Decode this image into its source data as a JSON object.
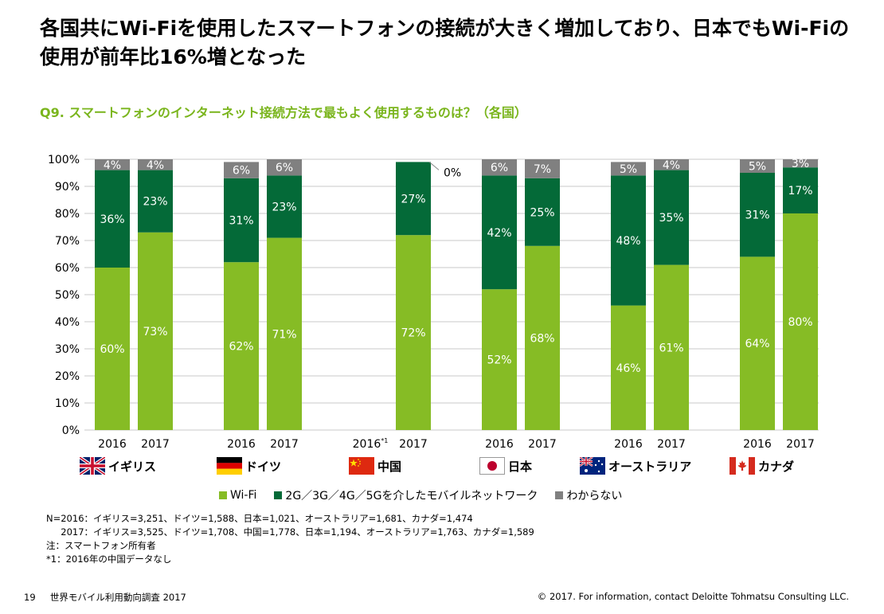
{
  "title": "各国共にWi-Fiを使用したスマートフォンの接続が大きく増加しており、日本でもWi-Fiの使用が前年比16%増となった",
  "subtitle": "Q9. スマートフォンのインターネット接続方法で最もよく使用するものは？（各国）",
  "colors": {
    "wifi": "#86bc25",
    "mobile": "#046a38",
    "unknown": "#808080",
    "accent": "#7ab51d"
  },
  "chart_data": {
    "type": "bar",
    "stacked": true,
    "ylim": [
      0,
      100
    ],
    "yticks": [
      "0%",
      "10%",
      "20%",
      "30%",
      "40%",
      "50%",
      "60%",
      "70%",
      "80%",
      "90%",
      "100%"
    ],
    "grid": true,
    "legend_position": "bottom",
    "groups": [
      {
        "country": "イギリス",
        "bars": [
          {
            "year": "2016",
            "wifi": 60,
            "mobile": 36,
            "unknown": 4
          },
          {
            "year": "2017",
            "wifi": 73,
            "mobile": 23,
            "unknown": 4
          }
        ]
      },
      {
        "country": "ドイツ",
        "bars": [
          {
            "year": "2016",
            "wifi": 62,
            "mobile": 31,
            "unknown": 6
          },
          {
            "year": "2017",
            "wifi": 71,
            "mobile": 23,
            "unknown": 6
          }
        ]
      },
      {
        "country": "中国",
        "bars": [
          {
            "year": "2016*1",
            "wifi": null,
            "mobile": null,
            "unknown": null
          },
          {
            "year": "2017",
            "wifi": 72,
            "mobile": 27,
            "unknown": 0
          }
        ]
      },
      {
        "country": "日本",
        "bars": [
          {
            "year": "2016",
            "wifi": 52,
            "mobile": 42,
            "unknown": 6
          },
          {
            "year": "2017",
            "wifi": 68,
            "mobile": 25,
            "unknown": 7
          }
        ]
      },
      {
        "country": "オーストラリア",
        "bars": [
          {
            "year": "2016",
            "wifi": 46,
            "mobile": 48,
            "unknown": 5
          },
          {
            "year": "2017",
            "wifi": 61,
            "mobile": 35,
            "unknown": 4
          }
        ]
      },
      {
        "country": "カナダ",
        "bars": [
          {
            "year": "2016",
            "wifi": 64,
            "mobile": 31,
            "unknown": 5
          },
          {
            "year": "2017",
            "wifi": 80,
            "mobile": 17,
            "unknown": 3
          }
        ]
      }
    ],
    "series": [
      {
        "key": "wifi",
        "name": "Wi-Fi"
      },
      {
        "key": "mobile",
        "name": "2G／3G／4G／5Gを介したモバイルネットワーク"
      },
      {
        "key": "unknown",
        "name": "わからない"
      }
    ]
  },
  "flags": [
    "uk-flag-icon",
    "germany-flag-icon",
    "china-flag-icon",
    "japan-flag-icon",
    "australia-flag-icon",
    "canada-flag-icon"
  ],
  "notes": [
    "N=2016：イギリス=3,251、ドイツ=1,588、日本=1,021、オーストラリア=1,681、カナダ=1,474",
    "     2017：イギリス=3,525、ドイツ=1,708、中国=1,778、日本=1,194、オーストラリア=1,763、カナダ=1,589",
    "注：スマートフォン所有者",
    "*1：2016年の中国データなし"
  ],
  "footer": {
    "page": "19",
    "doc": "世界モバイル利用動向調査 2017",
    "copyright": "© 2017. For information, contact Deloitte Tohmatsu Consulting LLC."
  }
}
